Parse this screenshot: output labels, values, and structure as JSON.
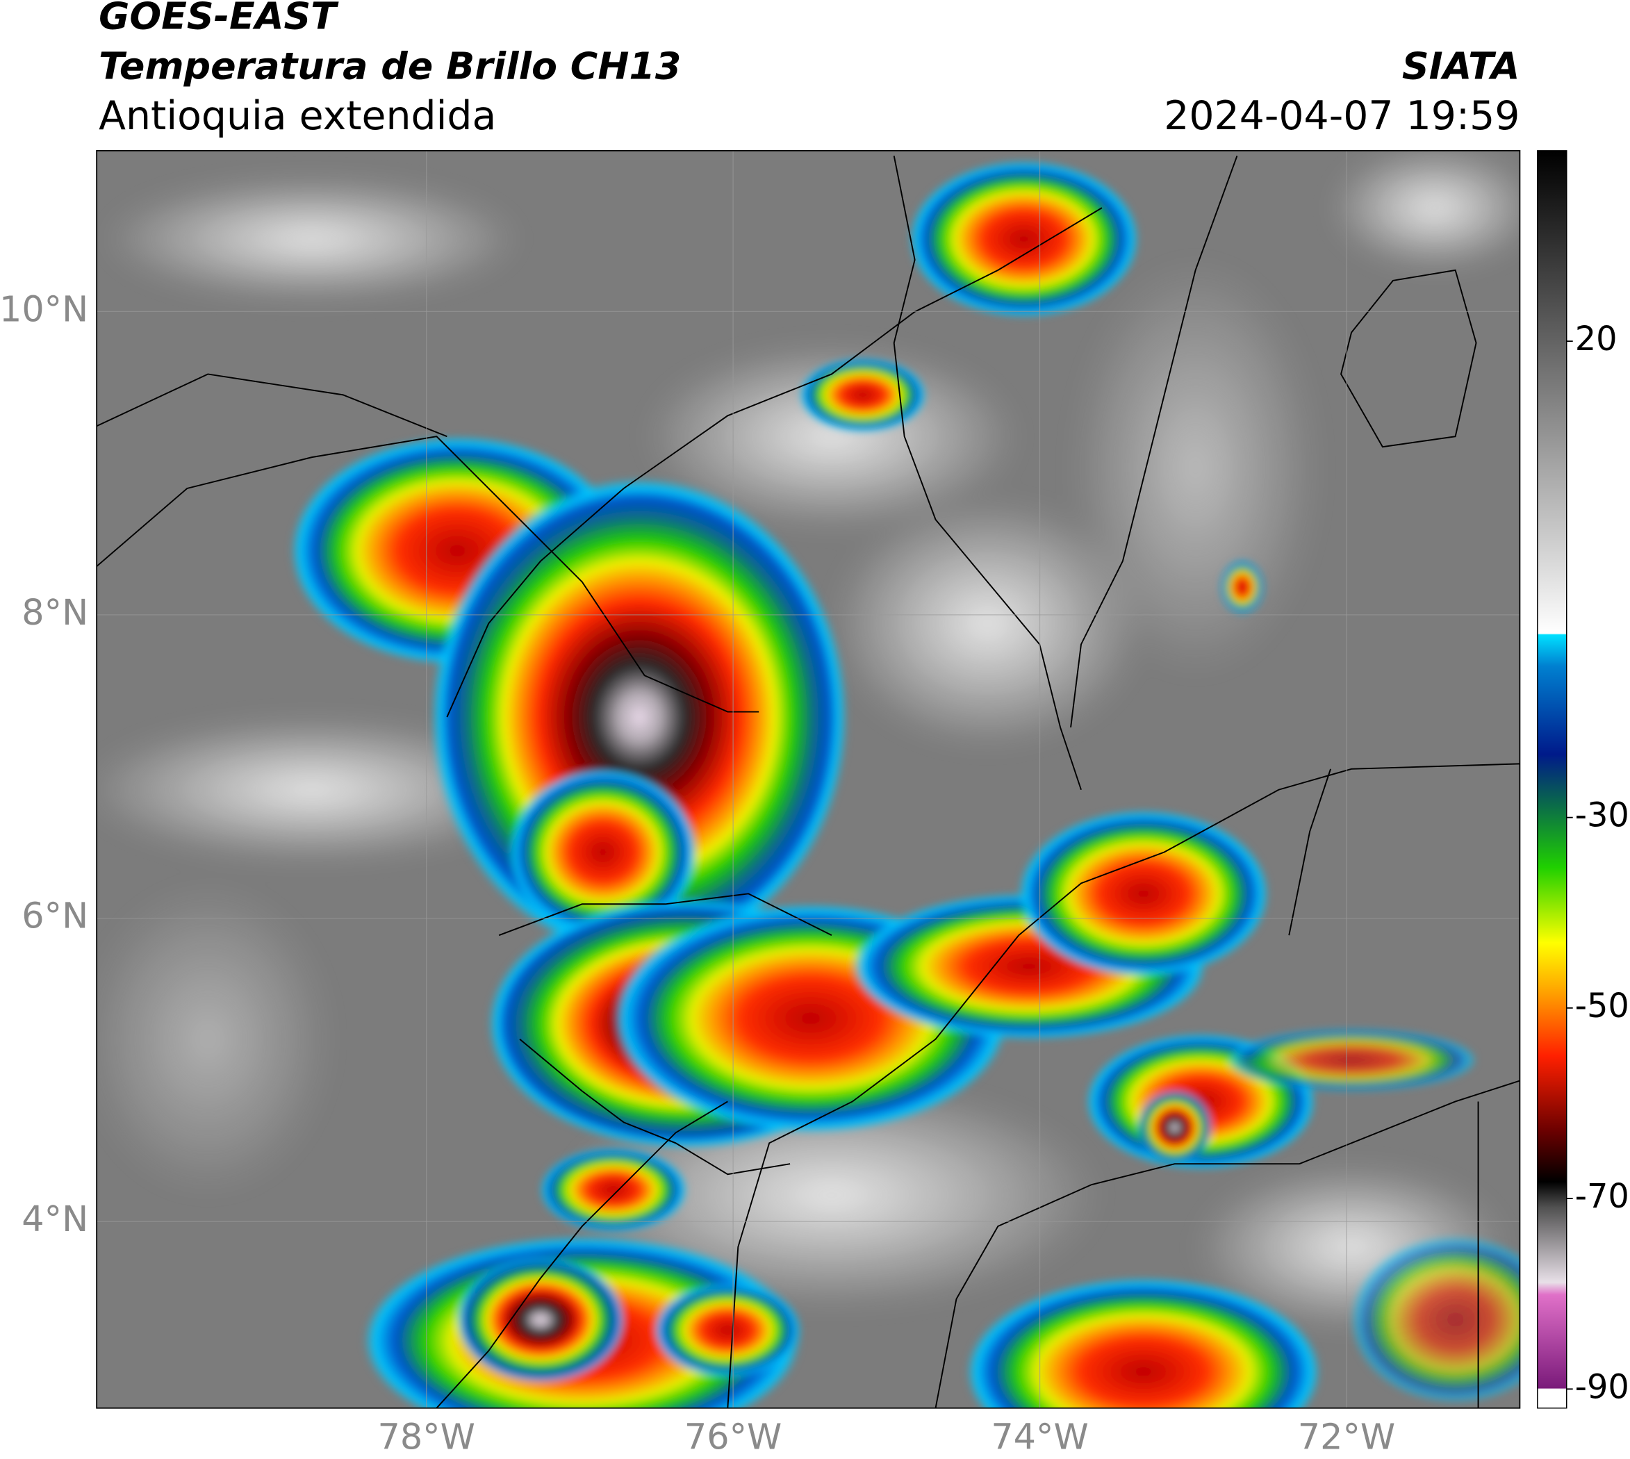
{
  "header": {
    "satellite": "GOES-EAST",
    "product": "Temperatura de Brillo CH13",
    "region": "Antioquia extendida",
    "source": "SIATA",
    "datetime": "2024-04-07 19:59"
  },
  "map": {
    "lon_range": [
      -80.15,
      -70.87
    ],
    "lat_range": [
      2.77,
      11.06
    ],
    "lat_ticks": [
      {
        "value": 10,
        "label": "10°N"
      },
      {
        "value": 8,
        "label": "8°N"
      },
      {
        "value": 6,
        "label": "6°N"
      },
      {
        "value": 4,
        "label": "4°N"
      }
    ],
    "lon_ticks": [
      {
        "value": -78,
        "label": "78°W"
      },
      {
        "value": -76,
        "label": "76°W"
      },
      {
        "value": -74,
        "label": "74°W"
      },
      {
        "value": -72,
        "label": "72°W"
      }
    ]
  },
  "colorbar": {
    "range": [
      -92,
      40
    ],
    "ticks": [
      20,
      -30,
      -50,
      -70,
      -90
    ]
  }
}
